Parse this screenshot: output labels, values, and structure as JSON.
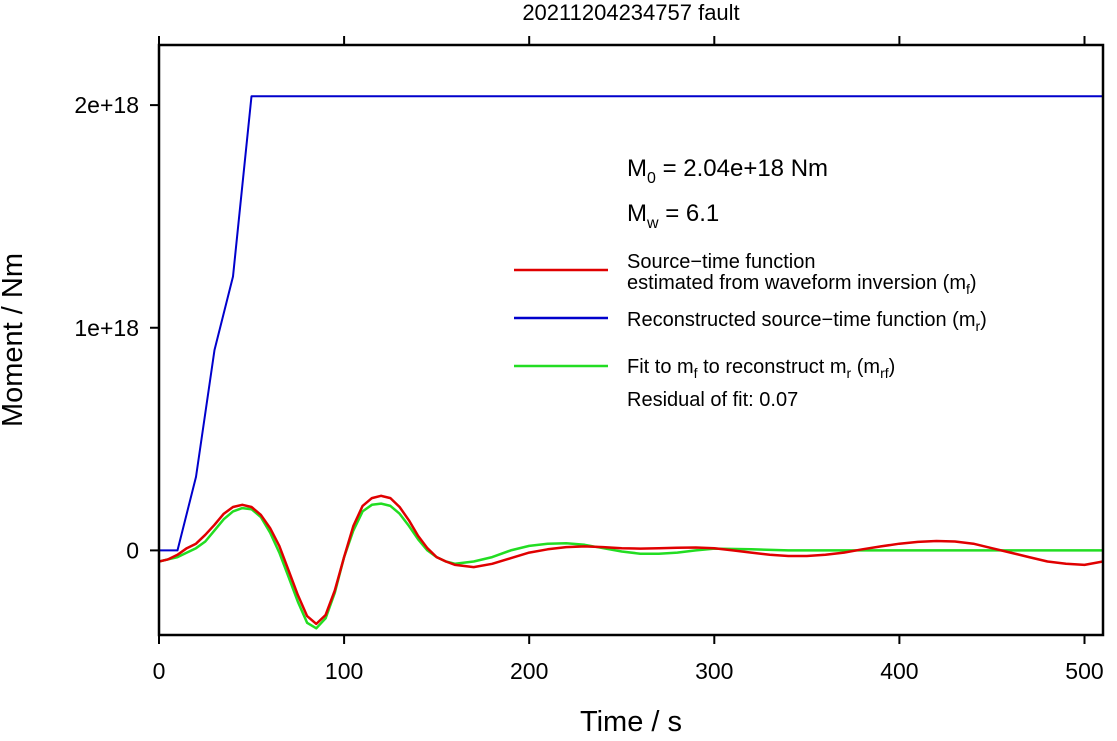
{
  "chart_data": {
    "type": "line",
    "title": "20211204234757 fault",
    "xlabel": "Time / s",
    "ylabel": "Moment / Nm",
    "xlim": [
      0,
      510
    ],
    "ylim": [
      -3.8e+17,
      2.27e+18
    ],
    "x_ticks": [
      0,
      100,
      200,
      300,
      400,
      500
    ],
    "x_tick_labels": [
      "0",
      "100",
      "200",
      "300",
      "400",
      "500"
    ],
    "y_ticks": [
      0,
      1e+18,
      2e+18
    ],
    "y_tick_labels": [
      "0",
      "1e+18",
      "2e+18"
    ],
    "grid": false,
    "legend_placement": "right-center",
    "series": [
      {
        "name": "Source-time function estimated from waveform inversion (m_f)",
        "color": "#e00000",
        "x": [
          0,
          5,
          10,
          15,
          20,
          25,
          30,
          35,
          40,
          45,
          50,
          55,
          60,
          65,
          70,
          75,
          80,
          85,
          90,
          95,
          100,
          105,
          110,
          115,
          120,
          125,
          130,
          135,
          140,
          145,
          150,
          155,
          160,
          165,
          170,
          180,
          190,
          200,
          210,
          220,
          230,
          240,
          250,
          260,
          270,
          280,
          290,
          300,
          310,
          320,
          330,
          340,
          350,
          360,
          370,
          380,
          390,
          400,
          410,
          420,
          430,
          440,
          450,
          460,
          470,
          480,
          490,
          500,
          510
        ],
        "values": [
          -5e+16,
          -4e+16,
          -2e+16,
          1e+16,
          3e+16,
          7e+16,
          1.15e+17,
          1.65e+17,
          1.95e+17,
          2.05e+17,
          1.95e+17,
          1.6e+17,
          1e+17,
          2e+16,
          -9e+16,
          -2e+17,
          -2.95e+17,
          -3.3e+17,
          -2.9e+17,
          -1.8e+17,
          -3e+16,
          1.1e+17,
          2e+17,
          2.35e+17,
          2.45e+17,
          2.35e+17,
          1.95e+17,
          1.35e+17,
          6.5e+16,
          1e+16,
          -3e+16,
          -5e+16,
          -6.5e+16,
          -7e+16,
          -7.5e+16,
          -6e+16,
          -3.5e+16,
          -1e+16,
          5000000000000000.0,
          1.5e+16,
          1.8e+16,
          1.5e+16,
          1e+16,
          8000000000000000.0,
          1e+16,
          1.2e+16,
          1.3e+16,
          1e+16,
          0,
          -1e+16,
          -2e+16,
          -2.5e+16,
          -2.5e+16,
          -2e+16,
          -1e+16,
          5000000000000000.0,
          1.8e+16,
          3e+16,
          3.8e+16,
          4.2e+16,
          4e+16,
          3e+16,
          1e+16,
          -1e+16,
          -3e+16,
          -5e+16,
          -6e+16,
          -6.5e+16,
          -5e+16
        ]
      },
      {
        "name": "Reconstructed source-time function (m_r)",
        "color": "#0000cc",
        "x": [
          0,
          10,
          20,
          30,
          40,
          50,
          510
        ],
        "values": [
          0,
          0,
          3.3e+17,
          9e+17,
          1.23e+18,
          2.04e+18,
          2.04e+18
        ]
      },
      {
        "name": "Fit to m_f to reconstruct m_r (m_rf)",
        "color": "#22dd22",
        "x": [
          0,
          5,
          10,
          15,
          20,
          25,
          30,
          35,
          40,
          45,
          50,
          55,
          60,
          65,
          70,
          75,
          80,
          85,
          90,
          95,
          100,
          105,
          110,
          115,
          120,
          125,
          130,
          135,
          140,
          145,
          150,
          155,
          160,
          165,
          170,
          180,
          190,
          200,
          210,
          220,
          230,
          240,
          250,
          260,
          270,
          280,
          290,
          300,
          320,
          340,
          360,
          380,
          400,
          420,
          440,
          460,
          480,
          500,
          510
        ],
        "values": [
          -5e+16,
          -4e+16,
          -3e+16,
          -1e+16,
          1e+16,
          4e+16,
          9e+16,
          1.4e+17,
          1.75e+17,
          1.9e+17,
          1.85e+17,
          1.5e+17,
          8e+16,
          -1e+16,
          -1.2e+17,
          -2.3e+17,
          -3.25e+17,
          -3.5e+17,
          -3.05e+17,
          -1.9e+17,
          -3e+16,
          9e+16,
          1.75e+17,
          2.05e+17,
          2.1e+17,
          2e+17,
          1.65e+17,
          1.1e+17,
          5e+16,
          0,
          -3e+16,
          -5e+16,
          -6e+16,
          -5.5e+16,
          -5e+16,
          -3e+16,
          0,
          2e+16,
          3e+16,
          3.2e+16,
          2.5e+16,
          1e+16,
          -5000000000000000.0,
          -1.5e+16,
          -1.5e+16,
          -1e+16,
          0,
          8000000000000000.0,
          5000000000000000.0,
          0,
          0,
          0,
          0,
          0,
          0,
          0,
          0,
          0,
          0
        ]
      }
    ],
    "annotations": {
      "m0_prefix": "M",
      "m0_sub": "0",
      "m0_suffix": " = 2.04e+18 Nm",
      "mw_prefix": "M",
      "mw_sub": "w",
      "mw_suffix": " = 6.1",
      "residual": "Residual of fit: 0.07"
    },
    "legend": {
      "red_line1": "Source−time function",
      "red_line2_prefix": "estimated from waveform inversion (m",
      "red_line2_sub": "f",
      "red_line2_suffix": ")",
      "blue_prefix": "Reconstructed source−time function (m",
      "blue_sub": "r",
      "blue_suffix": ")",
      "green_a": "Fit to m",
      "green_a_sub": "f",
      "green_b": " to reconstruct m",
      "green_b_sub": "r",
      "green_c": " (m",
      "green_c_sub": "rf",
      "green_d": ")"
    }
  }
}
